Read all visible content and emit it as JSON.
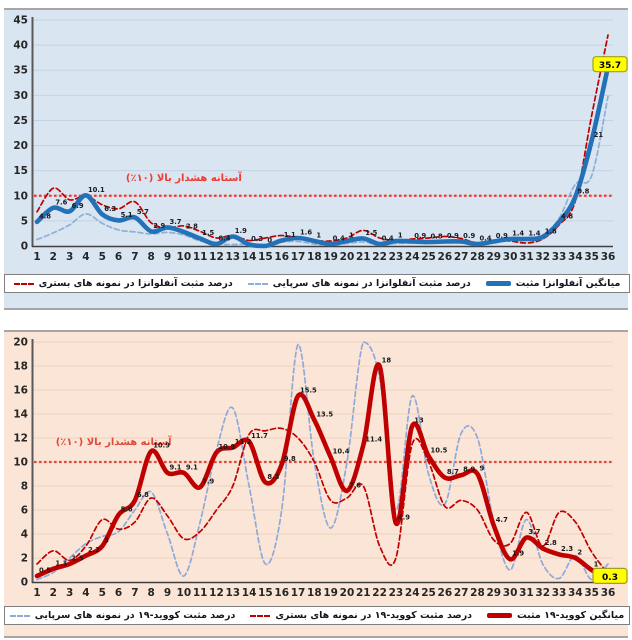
{
  "chart_data": [
    {
      "type": "line",
      "id": "influenza_weekly_positivity",
      "bg": "#d9e5f1",
      "ylim": [
        0,
        45
      ],
      "ystep": 5,
      "y_ticks": [
        0,
        5,
        10,
        15,
        20,
        25,
        30,
        35,
        40,
        45
      ],
      "x_ticks": [
        1,
        2,
        3,
        4,
        5,
        6,
        7,
        8,
        9,
        10,
        11,
        12,
        13,
        14,
        15,
        16,
        17,
        18,
        19,
        20,
        21,
        22,
        23,
        24,
        25,
        26,
        27,
        28,
        29,
        30,
        31,
        32,
        33,
        34,
        35,
        36
      ],
      "label_color": "#1a1a24",
      "threshold": {
        "value": 10,
        "label": "آستانه هشدار بالا (۱۰٪)",
        "color": "#f03a2e",
        "label_week": 10,
        "label_value": 12.9
      },
      "series": [
        {
          "key": "outpatient",
          "color": "#8fafd4",
          "width": 1.7,
          "dash": "5 3",
          "point_labels": false,
          "values": [
            1.3,
            2.6,
            4.2,
            6.4,
            4.5,
            3.2,
            2.8,
            2.4,
            2.7,
            2.2,
            1.0,
            0.4,
            0.3,
            0.4,
            0.3,
            0.8,
            0.9,
            0.4,
            0.2,
            0.5,
            0.8,
            0.2,
            0.5,
            0.6,
            0.5,
            1.0,
            1.1,
            0.6,
            1.0,
            1.5,
            1.6,
            2.2,
            5.5,
            12.3,
            14,
            29.8
          ]
        },
        {
          "key": "hospitalized",
          "color": "#c00000",
          "width": 1.7,
          "dash": "5 3",
          "point_labels": false,
          "values": [
            6.8,
            11.5,
            9.2,
            10.0,
            8.2,
            7.4,
            8.8,
            4.6,
            3.6,
            4.0,
            2.9,
            1.6,
            2.1,
            1.1,
            1.6,
            2.1,
            1.6,
            1.1,
            1.0,
            1.6,
            3.1,
            1.6,
            1.1,
            1.4,
            1.6,
            1.9,
            1.5,
            0.6,
            1.1,
            1.0,
            0.6,
            1.4,
            4.2,
            9.0,
            26,
            42
          ]
        },
        {
          "key": "mean",
          "color": "#2371b7",
          "width": 4.6,
          "dash": "",
          "point_labels": true,
          "values": [
            4.8,
            7.6,
            6.9,
            10.1,
            6.3,
            5.1,
            5.7,
            2.9,
            3.7,
            2.8,
            1.5,
            0.4,
            1.9,
            0.3,
            0,
            1.1,
            1.6,
            1,
            0.4,
            1,
            1.5,
            0.4,
            1,
            0.9,
            0.8,
            0.9,
            0.9,
            0.4,
            0.9,
            1.4,
            1.4,
            1.8,
            4.8,
            9.8,
            21,
            35.7
          ]
        }
      ],
      "end_label": {
        "text": "35.7",
        "bg": "#ffff00",
        "border": "#a0a017"
      },
      "legend": [
        {
          "label": "میانگین آنفلوانزا مثبت",
          "style": "solid",
          "color": "#2371b7"
        },
        {
          "label": "درصد مثبت آنفلوانزا در نمونه های سرپایی",
          "style": "dashed",
          "color": "#8fafd4"
        },
        {
          "label": "درصد مثبت آنفلوانزا در نمونه های بستری",
          "style": "dashed",
          "color": "#c00000"
        }
      ]
    },
    {
      "type": "line",
      "id": "covid19_weekly_positivity",
      "bg": "#fbe5d6",
      "ylim": [
        0,
        20
      ],
      "ystep": 2,
      "y_ticks": [
        0,
        2,
        4,
        6,
        8,
        10,
        12,
        14,
        16,
        18,
        20
      ],
      "x_ticks": [
        1,
        2,
        3,
        4,
        5,
        6,
        7,
        8,
        9,
        10,
        11,
        12,
        13,
        14,
        15,
        16,
        17,
        18,
        19,
        20,
        21,
        22,
        23,
        24,
        25,
        26,
        27,
        28,
        29,
        30,
        31,
        32,
        33,
        34,
        35,
        36
      ],
      "label_color": "#1a1a1a",
      "threshold": {
        "value": 10,
        "label": "آستانه هشدار بالا (۱۰٪)",
        "color": "#e04a3c",
        "label_week": 5.7,
        "label_value": 11.4
      },
      "series": [
        {
          "key": "outpatient",
          "color": "#8eaadb",
          "width": 1.7,
          "dash": "5 3",
          "point_labels": false,
          "values": [
            0.2,
            0.8,
            2.0,
            3.2,
            3.8,
            4.2,
            6.0,
            7.5,
            4.0,
            0.5,
            5.0,
            11.0,
            14.5,
            8.0,
            1.5,
            6.0,
            19.8,
            10.0,
            4.5,
            10.0,
            20.3,
            17.0,
            6.0,
            15.5,
            9.0,
            6.5,
            12.4,
            12.0,
            5.0,
            1.0,
            5.2,
            1.5,
            0.3,
            2.2,
            0.2,
            1.5
          ]
        },
        {
          "key": "hospitalized",
          "color": "#c00000",
          "width": 1.7,
          "dash": "5 3",
          "point_labels": false,
          "values": [
            1.5,
            2.6,
            1.8,
            3.0,
            5.2,
            4.4,
            5.0,
            7.0,
            5.5,
            3.6,
            4.2,
            6.0,
            8.0,
            12.3,
            12.6,
            12.8,
            12.0,
            10.0,
            6.8,
            7.0,
            8.0,
            3.0,
            2.0,
            11.5,
            10.0,
            6.3,
            6.8,
            6.0,
            3.5,
            3.2,
            5.8,
            3.0,
            5.8,
            5.0,
            2.5,
            0.7
          ]
        },
        {
          "key": "mean",
          "color": "#c00000",
          "width": 4.6,
          "dash": "",
          "point_labels": true,
          "values": [
            0.5,
            1.1,
            1.5,
            2.2,
            3,
            5.6,
            6.8,
            10.9,
            9.1,
            9.1,
            7.9,
            10.8,
            11.2,
            11.7,
            8.3,
            9.8,
            15.5,
            13.5,
            10.4,
            7.6,
            11.4,
            18,
            4.9,
            13,
            10.5,
            8.7,
            8.9,
            9,
            4.7,
            1.9,
            3.7,
            2.8,
            2.3,
            2,
            1,
            0.3
          ]
        }
      ],
      "end_label": {
        "text": "0.3",
        "bg": "#ffff00",
        "border": "#a0a017"
      },
      "legend": [
        {
          "label": "میانگین کووید-۱۹ مثبت",
          "style": "solid",
          "color": "#c00000"
        },
        {
          "label": "درصد مثبت کووید-۱۹ در نمونه های بستری",
          "style": "dashed",
          "color": "#c00000"
        },
        {
          "label": "درصد مثبت کووید-۱۹ در نمونه های سرپایی",
          "style": "dashed",
          "color": "#8eaadb"
        }
      ]
    }
  ]
}
